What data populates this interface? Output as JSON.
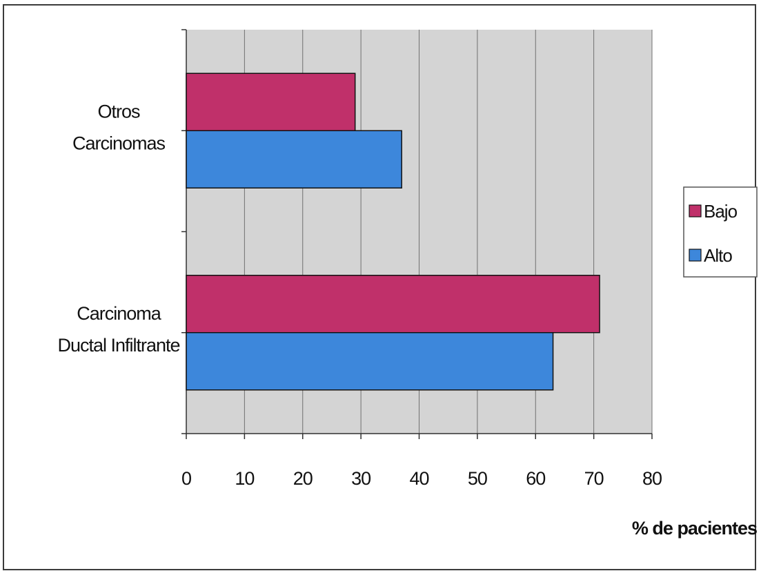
{
  "chart_data": {
    "type": "bar",
    "orientation": "horizontal",
    "categories": [
      "Otros Carcinomas",
      "Carcinoma Ductal Infiltrante"
    ],
    "category_label_lines": [
      [
        "Otros",
        "Carcinomas"
      ],
      [
        "Carcinoma",
        "Ductal Infiltrante"
      ]
    ],
    "series": [
      {
        "name": "Bajo",
        "values": [
          29,
          71
        ],
        "color": "#c0306a"
      },
      {
        "name": "Alto",
        "values": [
          37,
          63
        ],
        "color": "#3d87db"
      }
    ],
    "xlabel": "% de pacientes",
    "ylabel": "",
    "title": "",
    "xlim": [
      0,
      80
    ],
    "xticks": [
      "0",
      "10",
      "20",
      "30",
      "40",
      "50",
      "60",
      "70",
      "80"
    ],
    "grid": "vertical",
    "legend_position": "right",
    "plot_background": "#d4d4d4"
  }
}
